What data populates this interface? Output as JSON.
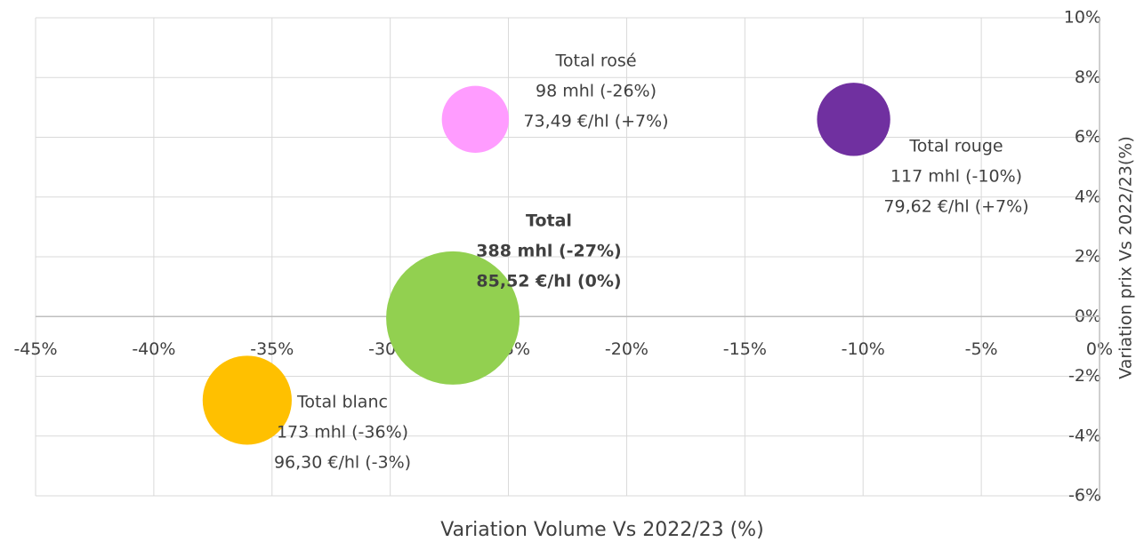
{
  "chart_data": {
    "type": "bubble",
    "x_label": "Variation Volume Vs 2022/23 (%)",
    "y_label": "Variation prix Vs 2022/23(%)",
    "xlim": [
      -45,
      0
    ],
    "xticks": [
      {
        "value": -45,
        "label": "-45%"
      },
      {
        "value": -40,
        "label": "-40%"
      },
      {
        "value": -35,
        "label": "-35%"
      },
      {
        "value": -30,
        "label": "-30%"
      },
      {
        "value": -25,
        "label": "-25%"
      },
      {
        "value": -20,
        "label": "-20%"
      },
      {
        "value": -15,
        "label": "-15%"
      },
      {
        "value": -10,
        "label": "-10%"
      },
      {
        "value": -5,
        "label": "-5%"
      },
      {
        "value": 0,
        "label": "0%"
      }
    ],
    "ylim": [
      -6,
      10
    ],
    "yticks": [
      {
        "value": -6,
        "label": "-6%"
      },
      {
        "value": -4,
        "label": "-4%"
      },
      {
        "value": -2,
        "label": "-2%"
      },
      {
        "value": 0,
        "label": "0%"
      },
      {
        "value": 2,
        "label": "2%"
      },
      {
        "value": 4,
        "label": "4%"
      },
      {
        "value": 6,
        "label": "6%"
      },
      {
        "value": 8,
        "label": "8%"
      },
      {
        "value": 10,
        "label": "10%"
      }
    ],
    "grid": true,
    "series": [
      {
        "name": "Total rosé",
        "color": "#ff9cff",
        "x": -26.4,
        "y": 6.6,
        "size": 98,
        "label_lines": [
          "98 mhl (-26%)",
          "73,49 €/hl (+7%)"
        ]
      },
      {
        "name": "Total rouge",
        "color": "#7030a0",
        "x": -10.4,
        "y": 6.6,
        "size": 117,
        "label_lines": [
          "117 mhl (-10%)",
          "79,62 €/hl (+7%)"
        ]
      },
      {
        "name": "Total",
        "color": "#92d050",
        "x": -27.35,
        "y": -0.05,
        "size": 388,
        "label_lines": [
          "388 mhl (-27%)",
          "85,52 €/hl (0%)"
        ]
      },
      {
        "name": "Total blanc",
        "color": "#ffc000",
        "x": -36.05,
        "y": -2.8,
        "size": 173,
        "label_lines": [
          "173 mhl (-36%)",
          "96,30 €/hl (-3%)"
        ]
      }
    ]
  }
}
